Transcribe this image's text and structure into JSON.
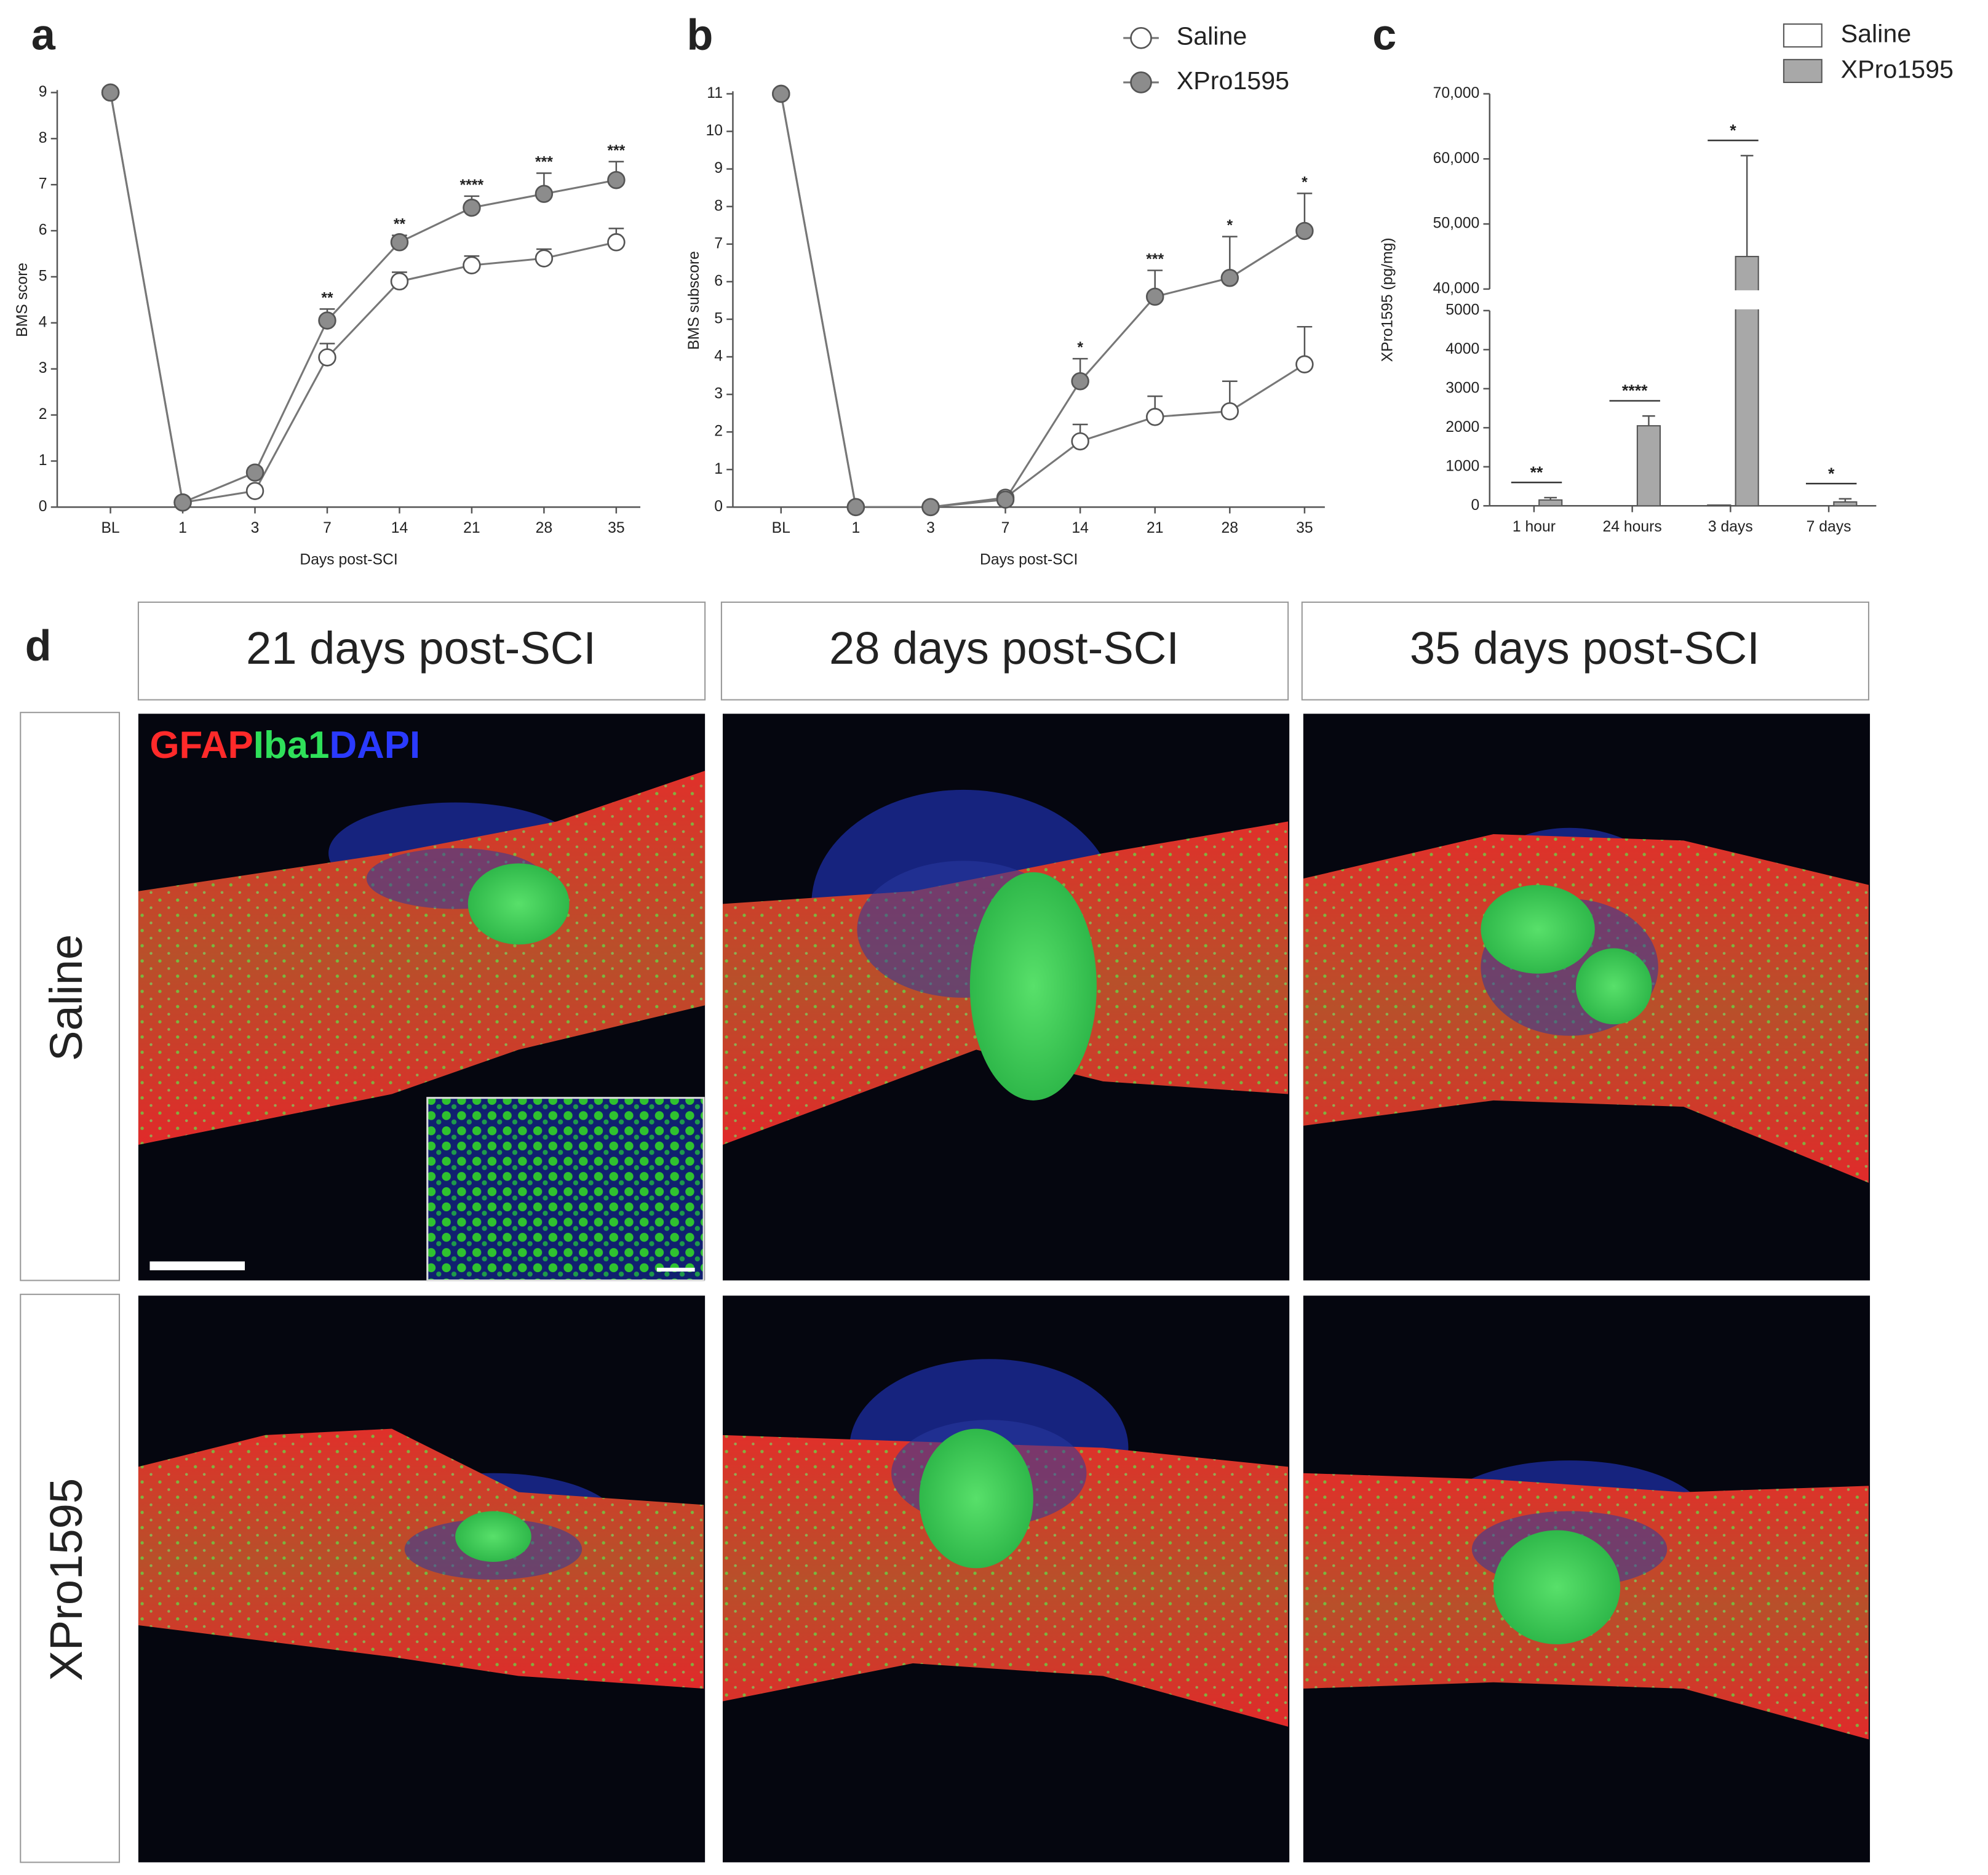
{
  "chart_data": [
    {
      "type": "line",
      "panel": "a",
      "ylabel": "BMS score",
      "xlabel": "Days post-SCI",
      "categories": [
        "BL",
        "1",
        "3",
        "7",
        "14",
        "21",
        "28",
        "35"
      ],
      "ylim": [
        0,
        9
      ],
      "yticks": [
        0,
        1,
        2,
        3,
        4,
        5,
        6,
        7,
        8,
        9
      ],
      "series": [
        {
          "color": "#ffffff",
          "values": [
            9,
            0.1,
            0.35,
            3.25,
            4.9,
            5.25,
            5.4,
            5.75
          ],
          "errors": [
            0,
            0.05,
            0.1,
            0.3,
            0.2,
            0.2,
            0.2,
            0.3
          ]
        },
        {
          "color": "#8c8c8c",
          "values": [
            9,
            0.1,
            0.75,
            4.05,
            5.75,
            6.5,
            6.8,
            7.1
          ],
          "errors": [
            0,
            0.05,
            0.1,
            0.25,
            0.15,
            0.25,
            0.45,
            0.4
          ]
        }
      ],
      "annotations": [
        {
          "category": 3,
          "text": "**"
        },
        {
          "category": 4,
          "text": "**"
        },
        {
          "category": 5,
          "text": "****"
        },
        {
          "category": 6,
          "text": "***"
        },
        {
          "category": 7,
          "text": "***"
        }
      ]
    },
    {
      "type": "line",
      "panel": "b",
      "ylabel": "BMS subscore",
      "xlabel": "Days post-SCI",
      "categories": [
        "BL",
        "1",
        "3",
        "7",
        "14",
        "21",
        "28",
        "35"
      ],
      "ylim": [
        0,
        11
      ],
      "yticks": [
        0,
        1,
        2,
        3,
        4,
        5,
        6,
        7,
        8,
        9,
        10,
        11
      ],
      "series": [
        {
          "name": "Saline",
          "color": "#ffffff",
          "values": [
            11,
            0,
            0,
            0.25,
            1.75,
            2.4,
            2.55,
            3.8
          ],
          "errors": [
            0,
            0,
            0,
            0.05,
            0.45,
            0.55,
            0.8,
            1.0
          ]
        },
        {
          "name": "XPro1595",
          "color": "#8c8c8c",
          "values": [
            11,
            0,
            0,
            0.2,
            3.35,
            5.6,
            6.1,
            7.35
          ],
          "errors": [
            0,
            0,
            0,
            0.05,
            0.6,
            0.7,
            1.1,
            1.0
          ]
        }
      ],
      "annotations": [
        {
          "category": 4,
          "text": "*"
        },
        {
          "category": 5,
          "text": "***"
        },
        {
          "category": 6,
          "text": "*"
        },
        {
          "category": 7,
          "text": "*"
        }
      ]
    },
    {
      "type": "bar",
      "panel": "c",
      "ylabel": "XPro1595 (pg/mg)",
      "categories": [
        "1 hour",
        "24 hours",
        "3 days",
        "7 days"
      ],
      "ylim_lower": [
        0,
        5000
      ],
      "ylim_upper": [
        40000,
        70000
      ],
      "yticks": [
        0,
        1000,
        2000,
        3000,
        4000,
        5000,
        {
          "value": 40000,
          "label": "40,000"
        },
        {
          "value": 50000,
          "label": "50,000"
        },
        {
          "value": 60000,
          "label": "60,000"
        },
        {
          "value": 70000,
          "label": "70,000"
        }
      ],
      "series": [
        {
          "name": "Saline",
          "color": "#ffffff",
          "values": [
            0,
            0,
            20,
            0
          ],
          "errors": [
            0,
            0,
            0,
            0
          ]
        },
        {
          "name": "XPro1595",
          "color": "#a8a8a8",
          "values": [
            150,
            2050,
            45000,
            100
          ],
          "errors": [
            60,
            250,
            15500,
            80
          ]
        }
      ],
      "annotations": [
        {
          "category": 0,
          "text": "**"
        },
        {
          "category": 1,
          "text": "****"
        },
        {
          "category": 2,
          "text": "*"
        },
        {
          "category": 3,
          "text": "*"
        }
      ]
    }
  ],
  "panel_d": {
    "label": "d",
    "columns": [
      "21 days post-SCI",
      "28 days post-SCI",
      "35 days post-SCI"
    ],
    "rows": [
      "Saline",
      "XPro1595"
    ],
    "stains": [
      "GFAP",
      "Iba1",
      "DAPI"
    ]
  }
}
